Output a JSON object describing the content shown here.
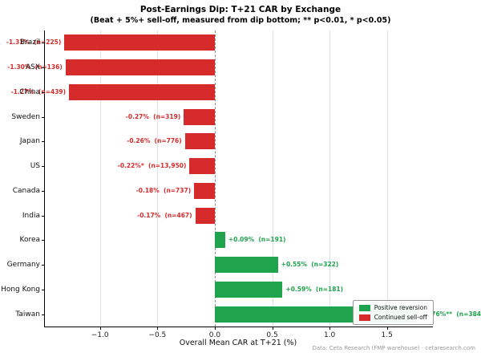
{
  "chart_data": {
    "type": "bar",
    "orientation": "horizontal",
    "title": "Post-Earnings Dip: T+21 CAR by Exchange",
    "subtitle": "(Beat + 5%+ sell-off, measured from dip bottom; ** p<0.01, * p<0.05)",
    "xlabel": "Overall Mean CAR at T+21 (%)",
    "footer": "Data: Ceta Research (FMP warehouse) · cetaresearch.com",
    "xlim": [
      -1.48,
      1.9
    ],
    "xticks": [
      -1.0,
      -0.5,
      0.0,
      0.5,
      1.0,
      1.5
    ],
    "xtick_labels": [
      "−1.0",
      "−0.5",
      "0.0",
      "0.5",
      "1.0",
      "1.5"
    ],
    "grid": "vertical-lines",
    "zero_line": "dashed",
    "categories": [
      "Brazil",
      "ASX",
      "China",
      "Sweden",
      "Japan",
      "US",
      "Canada",
      "India",
      "Korea",
      "Germany",
      "Hong Kong",
      "Taiwan"
    ],
    "values": [
      -1.31,
      -1.3,
      -1.27,
      -0.27,
      -0.26,
      -0.22,
      -0.18,
      -0.17,
      0.09,
      0.55,
      0.59,
      1.76
    ],
    "sample_sizes": [
      225,
      136,
      439,
      319,
      776,
      13950,
      737,
      467,
      191,
      322,
      181,
      384
    ],
    "labels": [
      "-1.31%  (n=225)",
      "-1.30%  (n=136)",
      "-1.27%  (n=439)",
      "-0.27%  (n=319)",
      "-0.26%  (n=776)",
      "-0.22%*  (n=13,950)",
      "-0.18%  (n=737)",
      "-0.17%  (n=467)",
      "+0.09%  (n=191)",
      "+0.55%  (n=322)",
      "+0.59%  (n=181)",
      "+1.76%**  (n=384)"
    ],
    "legend": [
      {
        "label": "Positive reversion",
        "color": "#1fa34c"
      },
      {
        "label": "Continued sell-off",
        "color": "#d62b2b"
      }
    ],
    "legend_position": "lower right",
    "colors": {
      "positive": "#1fa34c",
      "negative": "#d62b2b",
      "grid": "#e2e2e2",
      "zero_line": "#8a8a8a",
      "axis": "#000000",
      "footer_text": "#9a9a9a"
    }
  }
}
